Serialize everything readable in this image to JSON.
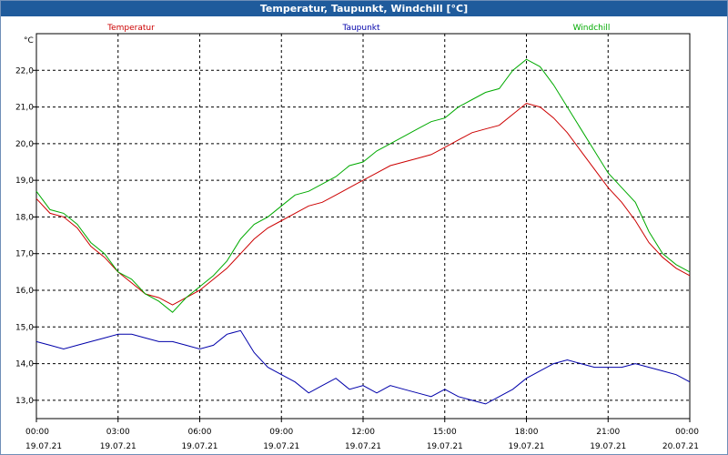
{
  "window": {
    "title": "Temperatur, Taupunkt, Windchill [°C]"
  },
  "chart_data": {
    "type": "line",
    "title": "Temperatur, Taupunkt, Windchill [°C]",
    "ylabel": "°C",
    "xlabel": "",
    "ylim": [
      12.5,
      23.0
    ],
    "y_ticks": [
      13.0,
      14.0,
      15.0,
      16.0,
      17.0,
      18.0,
      19.0,
      20.0,
      21.0,
      22.0
    ],
    "y_tick_labels": [
      "13,0",
      "14,0",
      "15,0",
      "16,0",
      "17,0",
      "18,0",
      "19,0",
      "20,0",
      "21,0",
      "22,0"
    ],
    "xlim": [
      0,
      24
    ],
    "x_ticks": [
      0,
      3,
      6,
      9,
      12,
      15,
      18,
      21,
      24
    ],
    "x_tick_times": [
      "00:00",
      "03:00",
      "06:00",
      "09:00",
      "12:00",
      "15:00",
      "18:00",
      "21:00",
      "00:00"
    ],
    "x_tick_dates": [
      "19.07.21",
      "19.07.21",
      "19.07.21",
      "19.07.21",
      "19.07.21",
      "19.07.21",
      "19.07.21",
      "19.07.21",
      "20.07.21"
    ],
    "grid": true,
    "legend_position": "top",
    "series": [
      {
        "name": "Temperatur",
        "color": "#cc0000",
        "x": [
          0,
          0.5,
          1,
          1.5,
          2,
          2.5,
          3,
          3.5,
          4,
          4.5,
          5,
          5.5,
          6,
          6.5,
          7,
          7.5,
          8,
          8.5,
          9,
          9.5,
          10,
          10.5,
          11,
          11.5,
          12,
          12.5,
          13,
          13.5,
          14,
          14.5,
          15,
          15.5,
          16,
          16.5,
          17,
          17.5,
          18,
          18.5,
          19,
          19.5,
          20,
          20.5,
          21,
          21.5,
          22,
          22.5,
          23,
          23.5,
          24
        ],
        "values": [
          18.5,
          18.1,
          18.0,
          17.7,
          17.2,
          16.9,
          16.5,
          16.2,
          15.9,
          15.8,
          15.6,
          15.8,
          16.0,
          16.3,
          16.6,
          17.0,
          17.4,
          17.7,
          17.9,
          18.1,
          18.3,
          18.4,
          18.6,
          18.8,
          19.0,
          19.2,
          19.4,
          19.5,
          19.6,
          19.7,
          19.9,
          20.1,
          20.3,
          20.4,
          20.5,
          20.8,
          21.1,
          21.0,
          20.7,
          20.3,
          19.8,
          19.3,
          18.8,
          18.4,
          17.9,
          17.3,
          16.9,
          16.6,
          16.4
        ]
      },
      {
        "name": "Taupunkt",
        "color": "#0000aa",
        "x": [
          0,
          0.5,
          1,
          1.5,
          2,
          2.5,
          3,
          3.5,
          4,
          4.5,
          5,
          5.5,
          6,
          6.5,
          7,
          7.5,
          8,
          8.5,
          9,
          9.5,
          10,
          10.5,
          11,
          11.5,
          12,
          12.5,
          13,
          13.5,
          14,
          14.5,
          15,
          15.5,
          16,
          16.5,
          17,
          17.5,
          18,
          18.5,
          19,
          19.5,
          20,
          20.5,
          21,
          21.5,
          22,
          22.5,
          23,
          23.5,
          24
        ],
        "values": [
          14.6,
          14.5,
          14.4,
          14.5,
          14.6,
          14.7,
          14.8,
          14.8,
          14.7,
          14.6,
          14.6,
          14.5,
          14.4,
          14.5,
          14.8,
          14.9,
          14.3,
          13.9,
          13.7,
          13.5,
          13.2,
          13.4,
          13.6,
          13.3,
          13.4,
          13.2,
          13.4,
          13.3,
          13.2,
          13.1,
          13.3,
          13.1,
          13.0,
          12.9,
          13.1,
          13.3,
          13.6,
          13.8,
          14.0,
          14.1,
          14.0,
          13.9,
          13.9,
          13.9,
          14.0,
          13.9,
          13.8,
          13.7,
          13.5
        ]
      },
      {
        "name": "Windchill",
        "color": "#00aa00",
        "x": [
          0,
          0.5,
          1,
          1.5,
          2,
          2.5,
          3,
          3.5,
          4,
          4.5,
          5,
          5.5,
          6,
          6.5,
          7,
          7.5,
          8,
          8.5,
          9,
          9.5,
          10,
          10.5,
          11,
          11.5,
          12,
          12.5,
          13,
          13.5,
          14,
          14.5,
          15,
          15.5,
          16,
          16.5,
          17,
          17.5,
          18,
          18.5,
          19,
          19.5,
          20,
          20.5,
          21,
          21.5,
          22,
          22.5,
          23,
          23.5,
          24
        ],
        "values": [
          18.7,
          18.2,
          18.1,
          17.8,
          17.3,
          17.0,
          16.5,
          16.3,
          15.9,
          15.7,
          15.4,
          15.8,
          16.1,
          16.4,
          16.8,
          17.4,
          17.8,
          18.0,
          18.3,
          18.6,
          18.7,
          18.9,
          19.1,
          19.4,
          19.5,
          19.8,
          20.0,
          20.2,
          20.4,
          20.6,
          20.7,
          21.0,
          21.2,
          21.4,
          21.5,
          22.0,
          22.3,
          22.1,
          21.6,
          21.0,
          20.4,
          19.8,
          19.2,
          18.8,
          18.4,
          17.6,
          17.0,
          16.7,
          16.5
        ]
      }
    ]
  }
}
